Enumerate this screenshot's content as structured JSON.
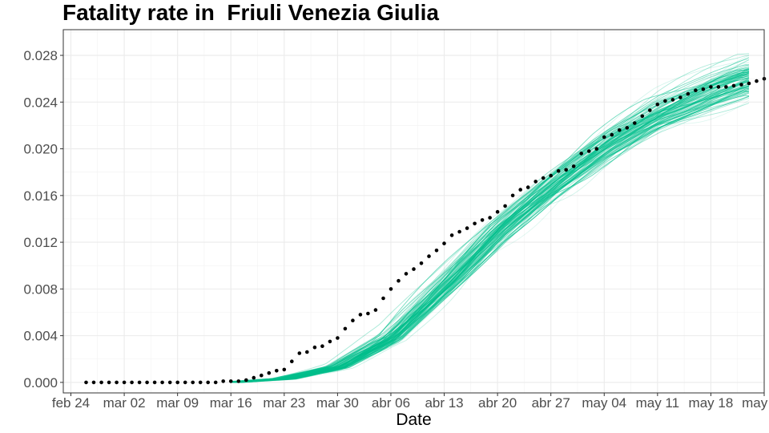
{
  "chart_data": {
    "type": "line",
    "title": "Fatality rate in  Friuli Venezia Giulia",
    "xlabel": "Date",
    "ylabel": "",
    "xlim": [
      "2020-02-23",
      "2020-05-25"
    ],
    "ylim": [
      -0.0009,
      0.0302
    ],
    "x_tick_labels": [
      "feb 24",
      "mar 02",
      "mar 09",
      "mar 16",
      "mar 23",
      "mar 30",
      "abr 06",
      "abr 13",
      "abr 20",
      "abr 27",
      "may 04",
      "may 11",
      "may 18",
      "may 25"
    ],
    "x_ticks": [
      "2020-02-24",
      "2020-03-02",
      "2020-03-09",
      "2020-03-16",
      "2020-03-23",
      "2020-03-30",
      "2020-04-06",
      "2020-04-13",
      "2020-04-20",
      "2020-04-27",
      "2020-05-04",
      "2020-05-11",
      "2020-05-18",
      "2020-05-25"
    ],
    "y_ticks": [
      0.0,
      0.004,
      0.008,
      0.012,
      0.016,
      0.02,
      0.024,
      0.028
    ],
    "y_tick_labels": [
      "0.000",
      "0.004",
      "0.008",
      "0.012",
      "0.016",
      "0.020",
      "0.024",
      "0.028"
    ],
    "grid": true,
    "colors": {
      "simulations": "#00BF8C",
      "observed": "#000000"
    },
    "observed": {
      "x_start": "2020-02-26",
      "values": [
        0.0,
        0.0,
        0.0,
        0.0,
        0.0,
        0.0,
        0.0,
        0.0,
        0.0,
        0.0,
        0.0,
        0.0,
        0.0,
        0.0,
        0.0,
        0.0,
        0.0,
        0.0,
        0.0001,
        0.0001,
        0.0001,
        0.0002,
        0.0004,
        0.0006,
        0.0008,
        0.001,
        0.0011,
        0.0018,
        0.0025,
        0.0026,
        0.003,
        0.0031,
        0.0035,
        0.0038,
        0.0046,
        0.0053,
        0.0058,
        0.0059,
        0.0062,
        0.0072,
        0.008,
        0.0087,
        0.0093,
        0.0097,
        0.0102,
        0.0108,
        0.0113,
        0.0119,
        0.0126,
        0.0129,
        0.0132,
        0.0136,
        0.0139,
        0.0141,
        0.0146,
        0.0151,
        0.016,
        0.0165,
        0.0167,
        0.0172,
        0.0175,
        0.0177,
        0.0181,
        0.0182,
        0.0185,
        0.0196,
        0.0198,
        0.02,
        0.021,
        0.0212,
        0.0216,
        0.0218,
        0.0222,
        0.0228,
        0.0233,
        0.0238,
        0.0241,
        0.0242,
        0.0244,
        0.0247,
        0.025,
        0.0251,
        0.0253,
        0.0253,
        0.0253,
        0.0254,
        0.0255,
        0.0256,
        0.0258,
        0.026,
        0.0261
      ]
    },
    "simulations": {
      "count": 100,
      "x_start": "2020-03-16",
      "x_end": "2020-05-23",
      "median": [
        {
          "x": "2020-03-16",
          "y": 0.0
        },
        {
          "x": "2020-03-23",
          "y": 0.0003
        },
        {
          "x": "2020-03-30",
          "y": 0.0013
        },
        {
          "x": "2020-04-06",
          "y": 0.0038
        },
        {
          "x": "2020-04-13",
          "y": 0.0082
        },
        {
          "x": "2020-04-20",
          "y": 0.0128
        },
        {
          "x": "2020-04-27",
          "y": 0.0166
        },
        {
          "x": "2020-05-04",
          "y": 0.02
        },
        {
          "x": "2020-05-11",
          "y": 0.0227
        },
        {
          "x": "2020-05-18",
          "y": 0.0247
        },
        {
          "x": "2020-05-23",
          "y": 0.0259
        }
      ],
      "spread_at_end": [
        0.024,
        0.0285
      ]
    }
  }
}
